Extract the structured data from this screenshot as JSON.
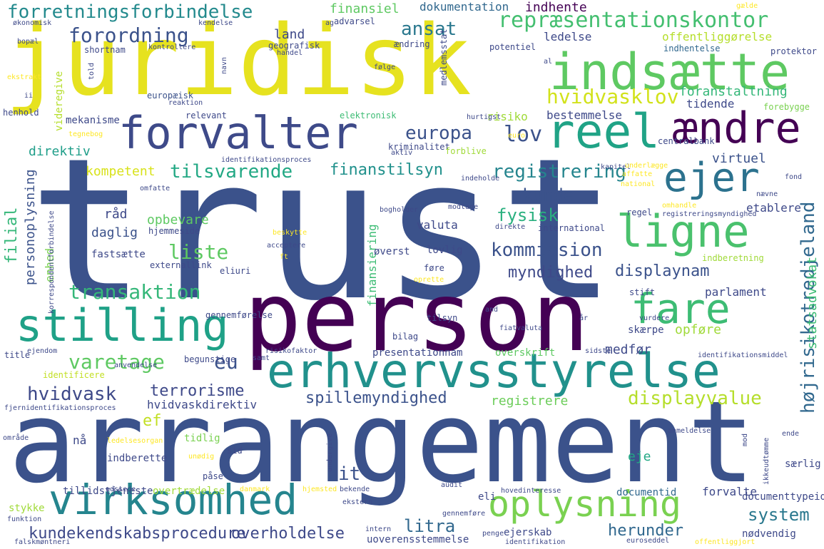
{
  "colors": {
    "background": "#ffffff",
    "palette": [
      "#440154",
      "#46327e",
      "#365c8d",
      "#277f8e",
      "#1fa187",
      "#4ac16d",
      "#a0da39",
      "#fde725"
    ]
  },
  "words": [
    {
      "text": "trust",
      "color": "#3b528b"
    },
    {
      "text": "arrangement",
      "color": "#3b528b"
    },
    {
      "text": "person",
      "color": "#440154"
    },
    {
      "text": "juridisk",
      "color": "#e6e21f"
    },
    {
      "text": "erhvervsstyrelse",
      "color": "#21918c"
    },
    {
      "text": "indsætte",
      "color": "#5ec962"
    },
    {
      "text": "forvalter",
      "color": "#3e4a89"
    },
    {
      "text": "reel",
      "color": "#20a386"
    },
    {
      "text": "ændre",
      "color": "#440154"
    },
    {
      "text": "ligne",
      "color": "#4ac16d"
    },
    {
      "text": "ejer",
      "color": "#2c728e"
    },
    {
      "text": "fare",
      "color": "#3dbc74"
    },
    {
      "text": "stilling",
      "color": "#1fa187"
    },
    {
      "text": "virksomhed",
      "color": "#25858e"
    },
    {
      "text": "oplysning",
      "color": "#7ad151"
    },
    {
      "text": "forretningsforbindelse",
      "color": "#238a8d"
    },
    {
      "text": "repræsentationskontor",
      "color": "#44bf70"
    },
    {
      "text": "forordning",
      "color": "#3b528b"
    },
    {
      "text": "hvidvasklov",
      "color": "#d2e21b"
    },
    {
      "text": "foranstaltning",
      "color": "#35b779"
    },
    {
      "text": "europa",
      "color": "#3b528b"
    },
    {
      "text": "lov",
      "color": "#3b528b"
    },
    {
      "text": "tilsvarende",
      "color": "#22a884"
    },
    {
      "text": "finanstilsyn",
      "color": "#21918c"
    },
    {
      "text": "registrering",
      "color": "#25858e"
    },
    {
      "text": "kunde",
      "color": "#3b528b"
    },
    {
      "text": "fysisk",
      "color": "#2ab07f"
    },
    {
      "text": "liste",
      "color": "#5ec962"
    },
    {
      "text": "kommission",
      "color": "#3b528b"
    },
    {
      "text": "myndighed",
      "color": "#3e4989"
    },
    {
      "text": "displaynam",
      "color": "#3b528b"
    },
    {
      "text": "transaktion",
      "color": "#35b779"
    },
    {
      "text": "varetage",
      "color": "#5ec962"
    },
    {
      "text": "eu",
      "color": "#3b528b"
    },
    {
      "text": "terrorisme",
      "color": "#3e4989"
    },
    {
      "text": "hvidvask",
      "color": "#3e4989"
    },
    {
      "text": "spillemyndighed",
      "color": "#3b528b"
    },
    {
      "text": "displayvalue",
      "color": "#b5de2b"
    },
    {
      "text": "system",
      "color": "#2a788e"
    },
    {
      "text": "litra",
      "color": "#31688e"
    },
    {
      "text": "herunder",
      "color": "#31688e"
    },
    {
      "text": "kundekendskabsprocedure",
      "color": "#3e4989"
    },
    {
      "text": "overholdelse",
      "color": "#3e4989"
    },
    {
      "text": "højrisikotredjeland",
      "color": "#31688e"
    },
    {
      "text": "statsadvokat",
      "color": "#3dbc74"
    },
    {
      "text": "ansat",
      "color": "#2a788e"
    },
    {
      "text": "land",
      "color": "#3e4989"
    },
    {
      "text": "finansiel",
      "color": "#5ec962"
    },
    {
      "text": "dokumentation",
      "color": "#31688e"
    },
    {
      "text": "indhente",
      "color": "#440154"
    },
    {
      "text": "ledelse",
      "color": "#3e4989"
    },
    {
      "text": "offentliggørelse",
      "color": "#b5de2b"
    },
    {
      "text": "indhentelse",
      "color": "#31688e"
    },
    {
      "text": "protektor",
      "color": "#3e4989"
    },
    {
      "text": "tidende",
      "color": "#3e4989"
    },
    {
      "text": "bestemmelse",
      "color": "#3e4989"
    },
    {
      "text": "forebygge",
      "color": "#7ad151"
    },
    {
      "text": "risiko",
      "color": "#a0da39"
    },
    {
      "text": "europæisk",
      "color": "#3b528b"
    },
    {
      "text": "direktiv",
      "color": "#1f9e89"
    },
    {
      "text": "kompetent",
      "color": "#d8e219"
    },
    {
      "text": "virtuel",
      "color": "#3b528b"
    },
    {
      "text": "etablere",
      "color": "#3e4989"
    },
    {
      "text": "centralbank",
      "color": "#3e4989"
    },
    {
      "text": "råd",
      "color": "#3e4989"
    },
    {
      "text": "daglig",
      "color": "#3b528b"
    },
    {
      "text": "opbevare",
      "color": "#5ec962"
    },
    {
      "text": "hjemmeside",
      "color": "#3e4989"
    },
    {
      "text": "valuta",
      "color": "#3e4989"
    },
    {
      "text": "filial",
      "color": "#35b779"
    },
    {
      "text": "personoplysning",
      "color": "#3b528b"
    },
    {
      "text": "enhed",
      "color": "#7ad151"
    },
    {
      "text": "finansiering",
      "color": "#3dbc74"
    },
    {
      "text": "medfør",
      "color": "#3e4989"
    },
    {
      "text": "opføre",
      "color": "#a0da39"
    },
    {
      "text": "parlament",
      "color": "#3e4989"
    },
    {
      "text": "registrere",
      "color": "#6ccd5a"
    },
    {
      "text": "hvidvaskdirektiv",
      "color": "#3e4989"
    },
    {
      "text": "ef",
      "color": "#c2df23"
    },
    {
      "text": "nå",
      "color": "#3e4989"
    },
    {
      "text": "eje",
      "color": "#22a884"
    },
    {
      "text": "it",
      "color": "#3b528b"
    },
    {
      "text": "tidlig",
      "color": "#7ad151"
    },
    {
      "text": "indberette",
      "color": "#3e4989"
    },
    {
      "text": "påse",
      "color": "#3e4989"
    },
    {
      "text": "tillidstjeneste",
      "color": "#3e4989"
    },
    {
      "text": "overtrædelse",
      "color": "#a0da39"
    },
    {
      "text": "documentid",
      "color": "#31688e"
    },
    {
      "text": "forvalte",
      "color": "#3e4989"
    },
    {
      "text": "documenttypeid",
      "color": "#3e4989"
    },
    {
      "text": "særlig",
      "color": "#3e4989"
    },
    {
      "text": "nødvendig",
      "color": "#3e4989"
    },
    {
      "text": "stykke",
      "color": "#a0da39"
    },
    {
      "text": "ejerskab",
      "color": "#3e4989"
    },
    {
      "text": "eli",
      "color": "#3e4989"
    },
    {
      "text": "uoverensstemmelse",
      "color": "#3e4989"
    },
    {
      "text": "presentationnam",
      "color": "#3e4989"
    },
    {
      "text": "overskrift",
      "color": "#5ec962"
    },
    {
      "text": "skærpe",
      "color": "#3e4989"
    },
    {
      "text": "stift",
      "color": "#3e4989"
    },
    {
      "text": "lovlig",
      "color": "#3e4989"
    },
    {
      "text": "øverst",
      "color": "#3e4989"
    },
    {
      "text": "føre",
      "color": "#3e4989"
    },
    {
      "text": "externallink",
      "color": "#3e4989"
    },
    {
      "text": "eliuri",
      "color": "#3e4989"
    },
    {
      "text": "fastsætte",
      "color": "#3e4989"
    },
    {
      "text": "mekanisme",
      "color": "#3e4989"
    },
    {
      "text": "relevant",
      "color": "#3e4989"
    },
    {
      "text": "elektronisk",
      "color": "#3dbc74"
    },
    {
      "text": "henhold",
      "color": "#3e4989"
    },
    {
      "text": "videregive",
      "color": "#b5de2b"
    },
    {
      "text": "kriminalitet",
      "color": "#3e4989"
    },
    {
      "text": "forblive",
      "color": "#a0da39"
    },
    {
      "text": "international",
      "color": "#3e4989"
    },
    {
      "text": "regel",
      "color": "#3e4989"
    },
    {
      "text": "indberetning",
      "color": "#a0da39"
    },
    {
      "text": "gennemførelse",
      "color": "#3e4989"
    },
    {
      "text": "begunstige",
      "color": "#3e4989"
    },
    {
      "text": "identificere",
      "color": "#c2df23"
    },
    {
      "text": "anvendelse",
      "color": "#3e4989"
    },
    {
      "text": "title",
      "color": "#3e4989"
    },
    {
      "text": "bilag",
      "color": "#3e4989"
    },
    {
      "text": "tilsyn",
      "color": "#3e4989"
    },
    {
      "text": "fiatvaluta",
      "color": "#3e4989"
    },
    {
      "text": "vurdere",
      "color": "#3e4989"
    },
    {
      "text": "sidste",
      "color": "#3e4989"
    },
    {
      "text": "identifikationsmiddel",
      "color": "#3e4989"
    },
    {
      "text": "risikofaktor",
      "color": "#3e4989"
    },
    {
      "text": "ejendom",
      "color": "#3e4989"
    },
    {
      "text": "fjernidentifikationsproces",
      "color": "#3e4989"
    },
    {
      "text": "område",
      "color": "#3e4989"
    },
    {
      "text": "ledelsesorgan",
      "color": "#fde725"
    },
    {
      "text": "sid",
      "color": "#3e4989"
    },
    {
      "text": "unødig",
      "color": "#fde725"
    },
    {
      "text": "udstede",
      "color": "#3e4989"
    },
    {
      "text": "danmark",
      "color": "#fde725"
    },
    {
      "text": "hjemsted",
      "color": "#fde725"
    },
    {
      "text": "bekende",
      "color": "#3e4989"
    },
    {
      "text": "hovedinteresse",
      "color": "#3e4989"
    },
    {
      "text": "ekstern",
      "color": "#3e4989"
    },
    {
      "text": "intern",
      "color": "#3e4989"
    },
    {
      "text": "gennemføre",
      "color": "#3e4989"
    },
    {
      "text": "penge",
      "color": "#3e4989"
    },
    {
      "text": "identifikation",
      "color": "#3e4989"
    },
    {
      "text": "euroseddel",
      "color": "#3e4989"
    },
    {
      "text": "offentliggjort",
      "color": "#fde725"
    },
    {
      "text": "funktion",
      "color": "#3e4989"
    },
    {
      "text": "falskmøntneri",
      "color": "#3e4989"
    },
    {
      "text": "undergive",
      "color": "#3e4989"
    },
    {
      "text": "audit",
      "color": "#3e4989"
    },
    {
      "text": "mod",
      "color": "#3e4989"
    },
    {
      "text": "ende",
      "color": "#3e4989"
    },
    {
      "text": "anmeldelse",
      "color": "#3e4989"
    },
    {
      "text": "ikkeudtømme",
      "color": "#3e4989"
    },
    {
      "text": "økonomisk",
      "color": "#3e4989"
    },
    {
      "text": "kendelse",
      "color": "#3e4989"
    },
    {
      "text": "advarsel",
      "color": "#3e4989"
    },
    {
      "text": "ag",
      "color": "#3e4989"
    },
    {
      "text": "geografisk",
      "color": "#3e4989"
    },
    {
      "text": "handel",
      "color": "#3e4989"
    },
    {
      "text": "ændring",
      "color": "#3e4989"
    },
    {
      "text": "medlemsstat",
      "color": "#3e4989"
    },
    {
      "text": "følge",
      "color": "#3e4989"
    },
    {
      "text": "potentiel",
      "color": "#3e4989"
    },
    {
      "text": "bopæl",
      "color": "#3e4989"
    },
    {
      "text": "kontrollere",
      "color": "#3e4989"
    },
    {
      "text": "shortnam",
      "color": "#3e4989"
    },
    {
      "text": "ekstrakt",
      "color": "#fde725"
    },
    {
      "text": "ii",
      "color": "#3e4989"
    },
    {
      "text": "told",
      "color": "#3e4989"
    },
    {
      "text": "navn",
      "color": "#3e4989"
    },
    {
      "text": "reaktion",
      "color": "#3e4989"
    },
    {
      "text": "al",
      "color": "#3e4989"
    },
    {
      "text": "gælde",
      "color": "#fde725"
    },
    {
      "text": "tegnebog",
      "color": "#fde725"
    },
    {
      "text": "hurtigst",
      "color": "#3e4989"
    },
    {
      "text": "euro",
      "color": "#fde725"
    },
    {
      "text": "aktiv",
      "color": "#3e4989"
    },
    {
      "text": "identifikationsproces",
      "color": "#3e4989"
    },
    {
      "text": "omfatte",
      "color": "#3e4989"
    },
    {
      "text": "affatte",
      "color": "#fde725"
    },
    {
      "text": "kapitel",
      "color": "#3e4989"
    },
    {
      "text": "underlægge",
      "color": "#fde725"
    },
    {
      "text": "national",
      "color": "#fde725"
    },
    {
      "text": "fond",
      "color": "#3e4989"
    },
    {
      "text": "nævne",
      "color": "#3e4989"
    },
    {
      "text": "indeholde",
      "color": "#3e4989"
    },
    {
      "text": "modtage",
      "color": "#3e4989"
    },
    {
      "text": "bogholder",
      "color": "#3e4989"
    },
    {
      "text": "beskytte",
      "color": "#fde725"
    },
    {
      "text": "acceptere",
      "color": "#3e4989"
    },
    {
      "text": "ft",
      "color": "#fde725"
    },
    {
      "text": "direkte",
      "color": "#3e4989"
    },
    {
      "text": "registreringsmyndighed",
      "color": "#3e4989"
    },
    {
      "text": "oprette",
      "color": "#fde725"
    },
    {
      "text": "korrespondentforbindelse",
      "color": "#3e4989"
    },
    {
      "text": "and",
      "color": "#3e4989"
    },
    {
      "text": "år",
      "color": "#3e4989"
    },
    {
      "text": "samt",
      "color": "#3e4989"
    },
    {
      "text": "omhandle",
      "color": "#fde725"
    }
  ]
}
